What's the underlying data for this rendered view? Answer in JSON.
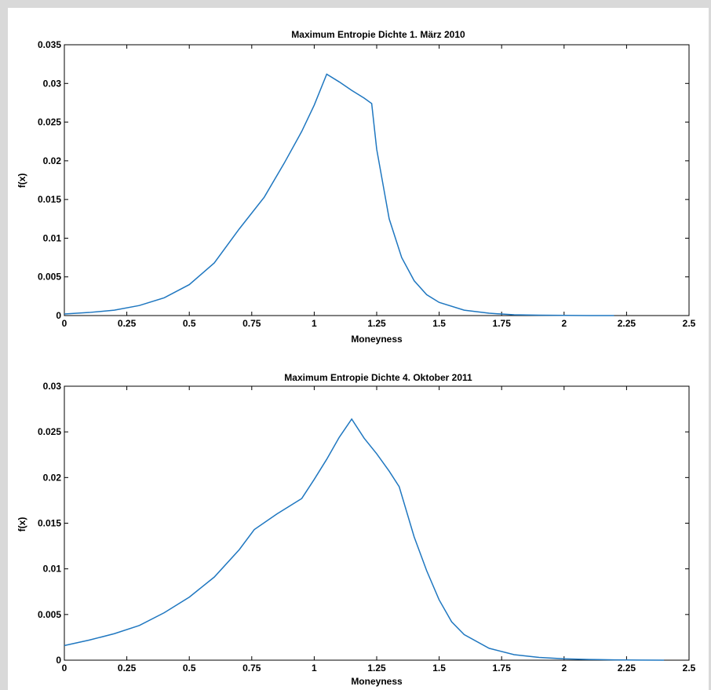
{
  "colors": {
    "line": "#1f77c0",
    "background": "#d9d9d9",
    "plot": "#ffffff"
  },
  "chart_data": [
    {
      "type": "line",
      "title": "Maximum Entropie Dichte 1. März 2010",
      "xlabel": "Moneyness",
      "ylabel": "f(x)",
      "xlim": [
        0,
        2.5
      ],
      "ylim": [
        0,
        0.035
      ],
      "xticks": [
        0,
        0.25,
        0.5,
        0.75,
        1,
        1.25,
        1.5,
        1.75,
        2,
        2.25,
        2.5
      ],
      "xtick_labels": [
        "0",
        "0.25",
        "0.5",
        "0.75",
        "1",
        "1.25",
        "1.5",
        "1.75",
        "2",
        "2.25",
        "2.5"
      ],
      "yticks": [
        0,
        0.005,
        0.01,
        0.015,
        0.02,
        0.025,
        0.03,
        0.035
      ],
      "ytick_labels": [
        "0",
        "0.005",
        "0.01",
        "0.015",
        "0.02",
        "0.025",
        "0.03",
        "0.035"
      ],
      "grid": false,
      "series": [
        {
          "x": [
            0,
            0.1,
            0.2,
            0.3,
            0.4,
            0.5,
            0.6,
            0.7,
            0.8,
            0.88,
            0.95,
            1.0,
            1.05,
            1.1,
            1.15,
            1.2,
            1.23,
            1.25,
            1.3,
            1.35,
            1.4,
            1.45,
            1.5,
            1.6,
            1.7,
            1.8,
            1.9,
            2.0,
            2.1,
            2.2
          ],
          "y": [
            0.0002,
            0.0004,
            0.0007,
            0.0013,
            0.0023,
            0.004,
            0.0068,
            0.0112,
            0.0153,
            0.0197,
            0.0238,
            0.0272,
            0.0312,
            0.0302,
            0.0291,
            0.0281,
            0.0274,
            0.0215,
            0.0125,
            0.0075,
            0.0045,
            0.0027,
            0.0017,
            0.0007,
            0.0003,
            0.0001,
            5e-05,
            2e-05,
            0.0,
            0.0
          ]
        }
      ]
    },
    {
      "type": "line",
      "title": "Maximum Entropie Dichte 4. Oktober 2011",
      "xlabel": "Moneyness",
      "ylabel": "f(x)",
      "xlim": [
        0,
        2.5
      ],
      "ylim": [
        0,
        0.03
      ],
      "xticks": [
        0,
        0.25,
        0.5,
        0.75,
        1,
        1.25,
        1.5,
        1.75,
        2,
        2.25,
        2.5
      ],
      "xtick_labels": [
        "0",
        "0.25",
        "0.5",
        "0.75",
        "1",
        "1.25",
        "1.5",
        "1.75",
        "2",
        "2.25",
        "2.5"
      ],
      "yticks": [
        0,
        0.005,
        0.01,
        0.015,
        0.02,
        0.025,
        0.03
      ],
      "ytick_labels": [
        "0",
        "0.005",
        "0.01",
        "0.015",
        "0.02",
        "0.025",
        "0.03"
      ],
      "grid": false,
      "series": [
        {
          "x": [
            0,
            0.1,
            0.2,
            0.3,
            0.4,
            0.5,
            0.6,
            0.7,
            0.76,
            0.85,
            0.95,
            1.0,
            1.05,
            1.1,
            1.15,
            1.2,
            1.25,
            1.3,
            1.34,
            1.4,
            1.45,
            1.5,
            1.55,
            1.6,
            1.7,
            1.8,
            1.9,
            2.0,
            2.1,
            2.2,
            2.3,
            2.4
          ],
          "y": [
            0.0016,
            0.0022,
            0.0029,
            0.0038,
            0.0052,
            0.0069,
            0.0091,
            0.0121,
            0.0143,
            0.016,
            0.0177,
            0.0198,
            0.022,
            0.0244,
            0.0264,
            0.0243,
            0.0226,
            0.0207,
            0.019,
            0.0135,
            0.0098,
            0.0066,
            0.0042,
            0.0028,
            0.0013,
            0.0006,
            0.0003,
            0.00015,
            8e-05,
            3e-05,
            1e-05,
            0.0
          ]
        }
      ]
    }
  ]
}
